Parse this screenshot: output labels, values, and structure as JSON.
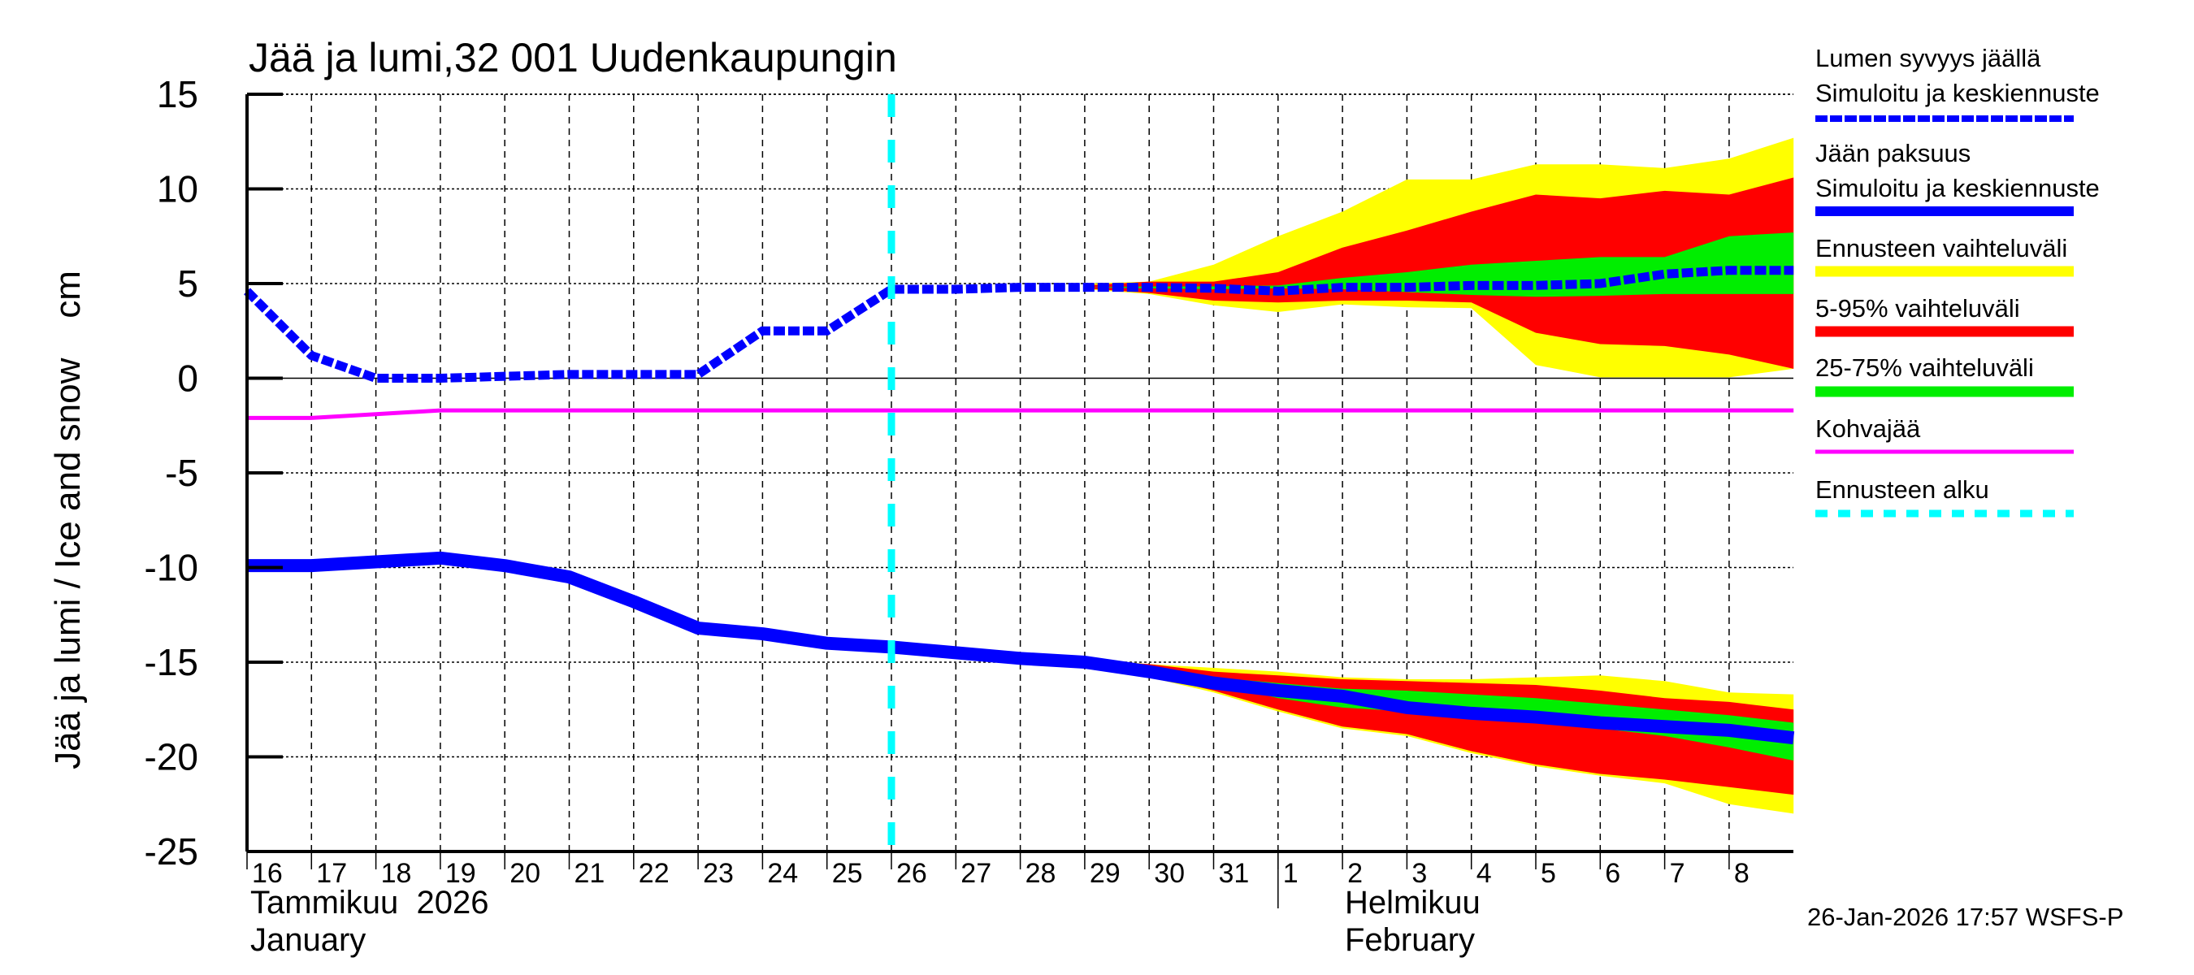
{
  "title": "Jää ja lumi,32 001 Uudenkaupungin",
  "y_axis_title": "Jää ja lumi / Ice and snow    cm",
  "x_axis": {
    "day_labels": [
      "16",
      "17",
      "18",
      "19",
      "20",
      "21",
      "22",
      "23",
      "24",
      "25",
      "26",
      "27",
      "28",
      "29",
      "30",
      "31",
      "1",
      "2",
      "3",
      "4",
      "5",
      "6",
      "7",
      "8"
    ],
    "month_labels": [
      {
        "line1": "Tammikuu  2026",
        "line2": "January"
      },
      {
        "line1": "Helmikuu",
        "line2": "February"
      }
    ]
  },
  "timestamp": "26-Jan-2026 17:57 WSFS-P",
  "legend": [
    {
      "line1": "Lumen syvyys jäällä",
      "line2": "Simuloitu ja keskiennuste",
      "color": "#0000ff",
      "style": "dotted-thick"
    },
    {
      "line1": "Jään paksuus",
      "line2": "Simuloitu ja keskiennuste",
      "color": "#0000ff",
      "style": "solid-thick"
    },
    {
      "line1": "Ennusteen vaihteluväli",
      "line2": "",
      "color": "#ffff00",
      "style": "band"
    },
    {
      "line1": "5-95% vaihteluväli",
      "line2": "",
      "color": "#ff0000",
      "style": "band"
    },
    {
      "line1": "25-75% vaihteluväli",
      "line2": "",
      "color": "#00ee00",
      "style": "band"
    },
    {
      "line1": "Kohvajää",
      "line2": "",
      "color": "#ff00ff",
      "style": "solid"
    },
    {
      "line1": "Ennusteen alku",
      "line2": "",
      "color": "#00ffff",
      "style": "dashed"
    }
  ],
  "colors": {
    "snow": "#0000ff",
    "ice": "#0000ff",
    "yellow": "#ffff00",
    "red": "#ff0000",
    "green": "#00ee00",
    "kohva": "#ff00ff",
    "forecast_start": "#00ffff"
  },
  "chart_data": {
    "type": "line",
    "title": "Jää ja lumi,32 001 Uudenkaupungin",
    "xlabel": "Tammikuu 2026 / January – Helmikuu / February",
    "ylabel": "Jää ja lumi / Ice and snow cm",
    "ylim": [
      -25,
      15
    ],
    "yticks": [
      15,
      10,
      5,
      0,
      -5,
      -10,
      -15,
      -20,
      -25
    ],
    "x_start": "2026-01-16",
    "x_end": "2026-02-09",
    "forecast_start": "2026-01-26",
    "grid": true,
    "legend_position": "right",
    "x": [
      "01-16",
      "01-17",
      "01-18",
      "01-19",
      "01-20",
      "01-21",
      "01-22",
      "01-23",
      "01-24",
      "01-25",
      "01-26",
      "01-27",
      "01-28",
      "01-29",
      "01-30",
      "01-31",
      "02-01",
      "02-02",
      "02-03",
      "02-04",
      "02-05",
      "02-06",
      "02-07",
      "02-08",
      "02-09"
    ],
    "series": [
      {
        "name": "Lumen syvyys jäällä (simuloitu ja keskiennuste)",
        "values": [
          4.6,
          1.2,
          0.0,
          0.0,
          0.1,
          0.2,
          0.2,
          0.2,
          2.5,
          2.5,
          4.7,
          4.7,
          4.8,
          4.8,
          4.8,
          4.75,
          4.6,
          4.8,
          4.8,
          4.9,
          4.9,
          5.0,
          5.5,
          5.7,
          5.7
        ]
      },
      {
        "name": "Jään paksuus (simuloitu ja keskiennuste)",
        "values": [
          -9.9,
          -9.9,
          -9.7,
          -9.5,
          -9.9,
          -10.5,
          -11.8,
          -13.2,
          -13.5,
          -14.0,
          -14.2,
          -14.5,
          -14.8,
          -15.0,
          -15.5,
          -16.1,
          -16.5,
          -16.8,
          -17.4,
          -17.7,
          -17.9,
          -18.2,
          -18.4,
          -18.6,
          -19.0
        ]
      },
      {
        "name": "Kohvajää",
        "values": [
          -2.1,
          -2.1,
          -1.9,
          -1.7,
          -1.7,
          -1.7,
          -1.7,
          -1.7,
          -1.7,
          -1.7,
          -1.7,
          -1.7,
          -1.7,
          -1.7,
          -1.7,
          -1.7,
          -1.7,
          -1.7,
          -1.7,
          -1.7,
          -1.7,
          -1.7,
          -1.7,
          -1.7,
          -1.7
        ]
      }
    ],
    "bands": {
      "x": [
        "01-29",
        "01-30",
        "01-31",
        "02-01",
        "02-02",
        "02-03",
        "02-04",
        "02-05",
        "02-06",
        "02-07",
        "02-08",
        "02-09"
      ],
      "snow": {
        "ennusteen_vaihteluvali": {
          "upper": [
            5.0,
            5.1,
            6.0,
            7.5,
            8.8,
            10.5,
            10.5,
            11.3,
            11.3,
            11.1,
            11.6,
            12.7
          ],
          "lower": [
            4.7,
            4.45,
            3.85,
            3.5,
            3.9,
            3.75,
            3.7,
            0.7,
            0.05,
            0.05,
            0.05,
            0.5
          ]
        },
        "p5_95": {
          "upper": [
            4.9,
            5.1,
            5.1,
            5.6,
            6.9,
            7.8,
            8.8,
            9.7,
            9.5,
            9.9,
            9.7,
            10.6
          ],
          "lower": [
            4.75,
            4.5,
            4.1,
            4.0,
            4.1,
            4.1,
            4.0,
            2.4,
            1.8,
            1.7,
            1.25,
            0.5
          ]
        },
        "p25_75": {
          "upper": [
            4.8,
            4.85,
            4.85,
            4.9,
            5.3,
            5.6,
            6.0,
            6.2,
            6.4,
            6.4,
            7.5,
            7.7
          ],
          "lower": [
            4.8,
            4.75,
            4.7,
            4.75,
            4.7,
            4.55,
            4.4,
            4.3,
            4.35,
            4.45,
            4.45,
            4.45
          ]
        }
      },
      "ice": {
        "ennusteen_vaihteluvali": {
          "upper": [
            -14.8,
            -15.1,
            -15.3,
            -15.5,
            -15.8,
            -15.9,
            -15.9,
            -15.8,
            -15.7,
            -16.0,
            -16.6,
            -16.7
          ],
          "lower": [
            -15.3,
            -15.8,
            -16.6,
            -17.6,
            -18.5,
            -18.9,
            -19.8,
            -20.5,
            -21.0,
            -21.4,
            -22.5,
            -23.0
          ]
        },
        "p5_95": {
          "upper": [
            -14.9,
            -15.1,
            -15.5,
            -15.7,
            -15.9,
            -16.0,
            -16.1,
            -16.2,
            -16.5,
            -16.9,
            -17.1,
            -17.5
          ],
          "lower": [
            -15.2,
            -15.7,
            -16.5,
            -17.5,
            -18.4,
            -18.8,
            -19.7,
            -20.4,
            -20.9,
            -21.2,
            -21.6,
            -22.0
          ]
        },
        "p25_75": {
          "upper": [
            -15.0,
            -15.3,
            -15.8,
            -16.1,
            -16.4,
            -16.5,
            -16.7,
            -16.9,
            -17.2,
            -17.5,
            -17.8,
            -18.2
          ],
          "lower": [
            -15.0,
            -15.6,
            -16.1,
            -16.9,
            -17.4,
            -17.6,
            -17.9,
            -18.2,
            -18.5,
            -18.9,
            -19.5,
            -20.2
          ]
        }
      }
    }
  }
}
